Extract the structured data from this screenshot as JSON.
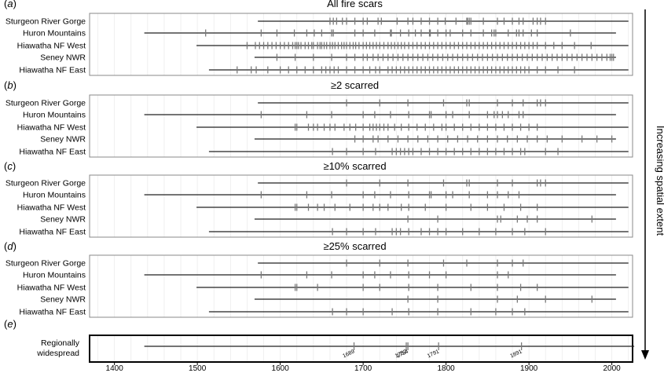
{
  "chart_data": {
    "type": "timeline",
    "x_axis": {
      "range": [
        1370,
        2025
      ],
      "ticks": [
        1400,
        1500,
        1600,
        1700,
        1800,
        1900,
        2000
      ],
      "grid": "vertical, every 20 years, light"
    },
    "side_label": "Increasing spatial extent",
    "sites": [
      "Sturgeon River Gorge",
      "Huron Mountains",
      "Hiawatha NF West",
      "Seney NWR",
      "Hiawatha NF East"
    ],
    "record_spans": [
      [
        1573,
        2020
      ],
      [
        1436,
        2005
      ],
      [
        1499,
        2020
      ],
      [
        1569,
        2005
      ],
      [
        1514,
        2020
      ]
    ],
    "panels": [
      {
        "letter": "a",
        "title": "All fire scars",
        "years": [
          [
            1660,
            1664,
            1668,
            1675,
            1680,
            1690,
            1700,
            1705,
            1718,
            1722,
            1741,
            1754,
            1760,
            1770,
            1780,
            1790,
            1799,
            1812,
            1825,
            1826,
            1828,
            1830,
            1845,
            1862,
            1870,
            1880,
            1888,
            1893,
            1905,
            1910,
            1914,
            1920
          ],
          [
            1510,
            1577,
            1596,
            1617,
            1632,
            1641,
            1650,
            1662,
            1664,
            1690,
            1700,
            1714,
            1733,
            1734,
            1745,
            1755,
            1763,
            1770,
            1780,
            1781,
            1790,
            1800,
            1805,
            1820,
            1830,
            1845,
            1855,
            1858,
            1860,
            1875,
            1885,
            1888,
            1893,
            1903,
            1910,
            1950
          ],
          [
            1560,
            1570,
            1575,
            1580,
            1585,
            1590,
            1595,
            1600,
            1605,
            1610,
            1615,
            1618,
            1620,
            1622,
            1625,
            1630,
            1634,
            1638,
            1640,
            1645,
            1648,
            1650,
            1653,
            1656,
            1660,
            1663,
            1666,
            1670,
            1674,
            1677,
            1680,
            1684,
            1688,
            1691,
            1695,
            1700,
            1704,
            1708,
            1712,
            1716,
            1720,
            1725,
            1730,
            1734,
            1738,
            1742,
            1746,
            1750,
            1755,
            1760,
            1765,
            1770,
            1775,
            1780,
            1785,
            1790,
            1795,
            1800,
            1805,
            1810,
            1815,
            1820,
            1825,
            1830,
            1835,
            1840,
            1845,
            1850,
            1855,
            1860,
            1865,
            1870,
            1875,
            1880,
            1885,
            1890,
            1895,
            1900,
            1905,
            1910,
            1920,
            1930,
            1940,
            1955,
            1975
          ],
          [
            1596,
            1618,
            1640,
            1662,
            1680,
            1690,
            1700,
            1705,
            1712,
            1718,
            1724,
            1730,
            1736,
            1742,
            1748,
            1754,
            1760,
            1766,
            1772,
            1778,
            1784,
            1790,
            1796,
            1802,
            1808,
            1814,
            1820,
            1826,
            1832,
            1838,
            1844,
            1850,
            1856,
            1862,
            1868,
            1874,
            1880,
            1886,
            1892,
            1898,
            1904,
            1910,
            1916,
            1922,
            1928,
            1934,
            1940,
            1946,
            1952,
            1958,
            1964,
            1970,
            1976,
            1982,
            1988,
            1994,
            1998,
            2000,
            2002
          ],
          [
            1548,
            1565,
            1571,
            1585,
            1600,
            1610,
            1620,
            1630,
            1640,
            1650,
            1655,
            1660,
            1665,
            1670,
            1680,
            1690,
            1700,
            1708,
            1715,
            1720,
            1730,
            1735,
            1740,
            1745,
            1750,
            1755,
            1760,
            1765,
            1770,
            1775,
            1780,
            1785,
            1790,
            1795,
            1800,
            1805,
            1810,
            1815,
            1820,
            1825,
            1830,
            1835,
            1840,
            1845,
            1850,
            1855,
            1860,
            1865,
            1870,
            1875,
            1880,
            1885,
            1890,
            1895,
            1900,
            1910,
            1920,
            1935,
            1955
          ]
        ]
      },
      {
        "letter": "b",
        "title": "≥2 scarred",
        "years": [
          [
            1680,
            1720,
            1754,
            1797,
            1825,
            1828,
            1862,
            1880,
            1893,
            1910,
            1914,
            1920
          ],
          [
            1577,
            1632,
            1662,
            1700,
            1714,
            1733,
            1755,
            1780,
            1782,
            1800,
            1808,
            1828,
            1850,
            1858,
            1862,
            1868,
            1875,
            1888,
            1893
          ],
          [
            1618,
            1620,
            1634,
            1640,
            1645,
            1653,
            1660,
            1666,
            1677,
            1684,
            1691,
            1700,
            1708,
            1712,
            1716,
            1720,
            1725,
            1730,
            1738,
            1746,
            1755,
            1765,
            1775,
            1785,
            1795,
            1800,
            1810,
            1820,
            1830,
            1840,
            1850,
            1860,
            1870,
            1880,
            1890,
            1900,
            1910
          ],
          [
            1690,
            1700,
            1712,
            1718,
            1730,
            1742,
            1754,
            1766,
            1778,
            1790,
            1802,
            1814,
            1826,
            1838,
            1850,
            1862,
            1874,
            1886,
            1898,
            1910,
            1922,
            1940,
            1964,
            1982,
            2000
          ],
          [
            1663,
            1680,
            1700,
            1715,
            1735,
            1740,
            1745,
            1750,
            1755,
            1760,
            1770,
            1780,
            1790,
            1800,
            1810,
            1820,
            1830,
            1840,
            1850,
            1860,
            1870,
            1880,
            1890,
            1895,
            1920,
            1935
          ]
        ]
      },
      {
        "letter": "c",
        "title": "≥10% scarred",
        "years": [
          [
            1680,
            1720,
            1754,
            1797,
            1825,
            1828,
            1862,
            1880,
            1910,
            1914,
            1920
          ],
          [
            1577,
            1632,
            1662,
            1700,
            1714,
            1733,
            1755,
            1780,
            1782,
            1800,
            1808,
            1828,
            1850,
            1862,
            1875,
            1888
          ],
          [
            1618,
            1620,
            1634,
            1645,
            1653,
            1666,
            1684,
            1700,
            1712,
            1720,
            1730,
            1746,
            1755,
            1775,
            1800,
            1830,
            1850,
            1870,
            1890,
            1910
          ],
          [
            1754,
            1790,
            1862,
            1866,
            1886,
            1898,
            1910,
            1976
          ],
          [
            1663,
            1680,
            1700,
            1715,
            1735,
            1740,
            1745,
            1755,
            1770,
            1780,
            1790,
            1800,
            1820,
            1840,
            1860,
            1880,
            1895,
            1920
          ]
        ]
      },
      {
        "letter": "d",
        "title": "≥25% scarred",
        "years": [
          [
            1680,
            1720,
            1754,
            1797,
            1825,
            1862,
            1880,
            1893
          ],
          [
            1577,
            1632,
            1662,
            1700,
            1714,
            1733,
            1755,
            1780,
            1800,
            1862,
            1875
          ],
          [
            1618,
            1620,
            1645,
            1700,
            1720,
            1755,
            1790,
            1830,
            1862,
            1890,
            1910
          ],
          [
            1754,
            1790,
            1862,
            1886,
            1920,
            1976
          ],
          [
            1663,
            1680,
            1700,
            1735,
            1755,
            1790,
            1830,
            1860,
            1880,
            1895
          ]
        ]
      },
      {
        "letter": "e",
        "title": "",
        "row_label": [
          "Regionally",
          "widespread"
        ],
        "span": [
          1436,
          2027
        ],
        "years": [
          1689,
          1752,
          1754,
          1791,
          1891
        ]
      }
    ]
  }
}
